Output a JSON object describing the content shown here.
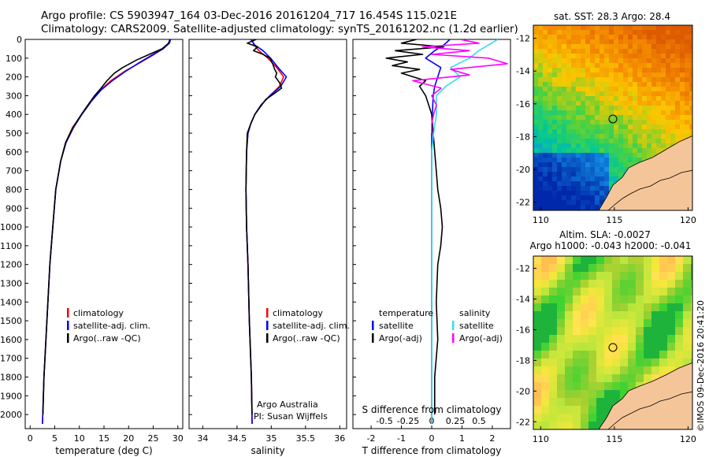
{
  "header": {
    "line1": "Argo profile: CS 5903947_164 03-Dec-2016 20161204_717 16.454S 115.021E",
    "line2": "Climatology: CARS2009. Satellite-adjusted climatology: synTS_20161202.nc (1.2d earlier)"
  },
  "map_top": {
    "title": "sat. SST: 28.3 Argo: 28.4",
    "xticks": [
      110,
      115,
      120
    ],
    "yticks": [
      -12,
      -14,
      -16,
      -18,
      -20,
      -22
    ],
    "xlim": [
      109.5,
      120.3
    ],
    "ylim": [
      -22.5,
      -11.2
    ],
    "float_marker": {
      "lon": 115.021,
      "lat": -16.454
    }
  },
  "map_bottom": {
    "title1": "Altim. SLA: -0.0027",
    "title2": "Argo h1000: -0.043 h2000: -0.041",
    "xticks": [
      110,
      115,
      120
    ],
    "yticks": [
      -12,
      -14,
      -16,
      -18,
      -20,
      -22
    ],
    "xlim": [
      109.5,
      120.3
    ],
    "ylim": [
      -22.5,
      -11.2
    ],
    "float_marker": {
      "lon": 115.021,
      "lat": -16.454
    }
  },
  "stamp": "©IMOS 09-Dec-2016 20:41:20",
  "colors": {
    "climatology": "#ff0000",
    "satellite": "#0000ff",
    "argo": "#000000",
    "sal_satellite": "#33ddee",
    "sal_argo": "#ff00ff",
    "land": "#f5c59a"
  },
  "chart_data": [
    {
      "type": "line",
      "name": "temperature-panel",
      "xlabel": "temperature (deg C)",
      "xlim": [
        -1,
        31
      ],
      "xticks": [
        0,
        5,
        10,
        15,
        20,
        25,
        30
      ],
      "ylim": [
        0,
        2075
      ],
      "yticks": [
        0,
        100,
        200,
        300,
        400,
        500,
        600,
        700,
        800,
        900,
        1000,
        1100,
        1200,
        1300,
        1400,
        1500,
        1600,
        1700,
        1800,
        1900,
        2000
      ],
      "yreversed": true,
      "legend": [
        "climatology",
        "satellite-adj. clim.",
        "Argo(..raw -QC)"
      ],
      "series": [
        {
          "name": "climatology",
          "color": "#ff0000",
          "depth": [
            0,
            20,
            50,
            80,
            120,
            170,
            220,
            270,
            330,
            400,
            470,
            550,
            650,
            800,
            1000,
            1200,
            1400,
            1600,
            1800,
            2050
          ],
          "values": [
            28.4,
            28.2,
            27.0,
            25.2,
            22.6,
            19.2,
            16.4,
            14.3,
            12.4,
            10.5,
            8.6,
            7.2,
            6.2,
            5.2,
            4.6,
            4.0,
            3.6,
            3.2,
            2.8,
            2.5
          ]
        },
        {
          "name": "satellite-adj. clim.",
          "color": "#0000ff",
          "depth": [
            0,
            20,
            50,
            80,
            120,
            170,
            220,
            270,
            330,
            400,
            470,
            550,
            650,
            800,
            1000,
            1200,
            1400,
            1600,
            1800,
            2050
          ],
          "values": [
            28.5,
            28.3,
            27.0,
            25.0,
            22.4,
            19.4,
            16.7,
            14.4,
            12.4,
            10.5,
            8.8,
            7.3,
            6.2,
            5.2,
            4.6,
            4.0,
            3.6,
            3.2,
            2.8,
            2.5
          ]
        },
        {
          "name": "Argo(..raw -QC)",
          "color": "#000000",
          "depth": [
            0,
            20,
            50,
            80,
            110,
            150,
            180,
            220,
            260,
            300,
            340,
            400,
            470,
            550,
            650,
            800,
            1000,
            1200,
            1400,
            1600,
            1800,
            2000
          ],
          "values": [
            28.4,
            28.1,
            26.8,
            24.2,
            21.6,
            18.8,
            17.1,
            15.6,
            14.4,
            13.1,
            12.0,
            10.4,
            8.7,
            7.2,
            6.2,
            5.2,
            4.6,
            4.0,
            3.6,
            3.2,
            2.8,
            2.6
          ]
        }
      ]
    },
    {
      "type": "line",
      "name": "salinity-panel",
      "xlabel": "salinity",
      "xlim": [
        33.8,
        36.1
      ],
      "xticks": [
        34,
        34.5,
        35,
        35.5,
        36
      ],
      "ylim": [
        0,
        2075
      ],
      "yreversed": true,
      "legend": [
        "climatology",
        "satellite-adj. clim.",
        "Argo(..raw -QC)"
      ],
      "annotations": [
        "Argo Australia",
        "PI: Susan Wijffels"
      ],
      "series": [
        {
          "name": "climatology",
          "color": "#ff0000",
          "depth": [
            0,
            30,
            60,
            100,
            150,
            200,
            250,
            300,
            350,
            400,
            450,
            500,
            600,
            800,
            1000,
            1200,
            1500,
            1800,
            2050
          ],
          "values": [
            34.72,
            34.75,
            34.82,
            34.95,
            35.08,
            35.18,
            35.12,
            34.98,
            34.85,
            34.76,
            34.7,
            34.66,
            34.64,
            34.63,
            34.64,
            34.66,
            34.68,
            34.71,
            34.72
          ]
        },
        {
          "name": "satellite-adj. clim.",
          "color": "#0000ff",
          "depth": [
            0,
            30,
            60,
            100,
            150,
            200,
            250,
            300,
            350,
            400,
            450,
            500,
            600,
            800,
            1000,
            1200,
            1500,
            1800,
            2050
          ],
          "values": [
            34.7,
            34.76,
            34.88,
            34.99,
            35.1,
            35.22,
            35.14,
            34.98,
            34.85,
            34.76,
            34.7,
            34.66,
            34.64,
            34.63,
            34.64,
            34.66,
            34.68,
            34.71,
            34.72
          ]
        },
        {
          "name": "Argo(..raw -QC)",
          "color": "#000000",
          "depth": [
            0,
            20,
            40,
            60,
            80,
            100,
            130,
            160,
            180,
            200,
            230,
            260,
            290,
            320,
            360,
            400,
            450,
            500,
            600,
            800,
            1000,
            1200,
            1500,
            1800,
            2000
          ],
          "values": [
            34.78,
            34.65,
            34.8,
            34.74,
            34.88,
            34.98,
            35.02,
            35.05,
            35.08,
            35.06,
            35.12,
            35.15,
            35.04,
            34.92,
            34.84,
            34.76,
            34.7,
            34.65,
            34.64,
            34.63,
            34.64,
            34.66,
            34.68,
            34.71,
            34.72
          ]
        }
      ]
    },
    {
      "type": "line",
      "name": "difference-panel",
      "xlabel": "T difference from climatology",
      "xlabel_top": "S difference from climatology",
      "xlim": [
        -2.6,
        2.6
      ],
      "xticks": [
        -2,
        -1,
        0,
        1,
        2
      ],
      "xticks_s": [
        -0.5,
        -0.25,
        0,
        0.25,
        0.5
      ],
      "ylim": [
        0,
        2075
      ],
      "yreversed": true,
      "legend_groups": {
        "temperature": [
          "satellite",
          "Argo(-adj)"
        ],
        "salinity": [
          "satellite",
          "Argo(-adj)"
        ]
      },
      "series": [
        {
          "name": "temperature satellite",
          "color": "#0000ff",
          "depth": [
            0,
            30,
            60,
            100,
            150,
            200,
            250,
            300,
            400,
            500,
            700,
            900,
            1100,
            1400,
            1700,
            2050
          ],
          "values": [
            0.6,
            0.4,
            0.1,
            -0.2,
            0.3,
            0.2,
            0.1,
            0.05,
            0.02,
            0.0,
            0.0,
            0.0,
            0.0,
            0.0,
            0.0,
            0.0
          ]
        },
        {
          "name": "temperature Argo(-adj)",
          "color": "#000000",
          "depth": [
            0,
            20,
            40,
            60,
            80,
            100,
            120,
            140,
            160,
            180,
            200,
            220,
            250,
            300,
            350,
            400,
            500,
            600,
            700,
            800,
            900,
            1000,
            1100,
            1200,
            1400,
            1600,
            1800,
            2000
          ],
          "values": [
            -0.5,
            -1.0,
            0.4,
            -1.2,
            -0.3,
            -1.5,
            -0.8,
            -1.3,
            -0.4,
            -1.0,
            -0.6,
            -0.2,
            -0.4,
            -0.2,
            -0.1,
            0.0,
            0.05,
            0.1,
            0.15,
            0.2,
            0.3,
            0.35,
            0.3,
            0.2,
            0.15,
            0.2,
            0.1,
            0.1
          ]
        },
        {
          "name": "salinity satellite",
          "color": "#33ddee",
          "depth": [
            0,
            30,
            60,
            100,
            150,
            200,
            250,
            300,
            400,
            500,
            600,
            800,
            1000,
            1300,
            1700,
            2050
          ],
          "values": [
            0.7,
            0.6,
            0.5,
            0.4,
            0.2,
            0.3,
            0.15,
            0.05,
            0.05,
            0.02,
            0.0,
            0.0,
            0.0,
            0.0,
            0.0,
            0.0
          ]
        },
        {
          "name": "salinity Argo(-adj)",
          "color": "#ff00ff",
          "depth": [
            0,
            20,
            40,
            60,
            80,
            100,
            130,
            160,
            190,
            220,
            260,
            300,
            350,
            400,
            450,
            500
          ],
          "values": [
            0.3,
            0.5,
            -0.1,
            0.4,
            0.0,
            0.6,
            0.8,
            0.2,
            0.4,
            -0.2,
            0.1,
            0.0,
            0.05,
            0.02,
            0.0,
            0.0
          ]
        }
      ]
    }
  ]
}
